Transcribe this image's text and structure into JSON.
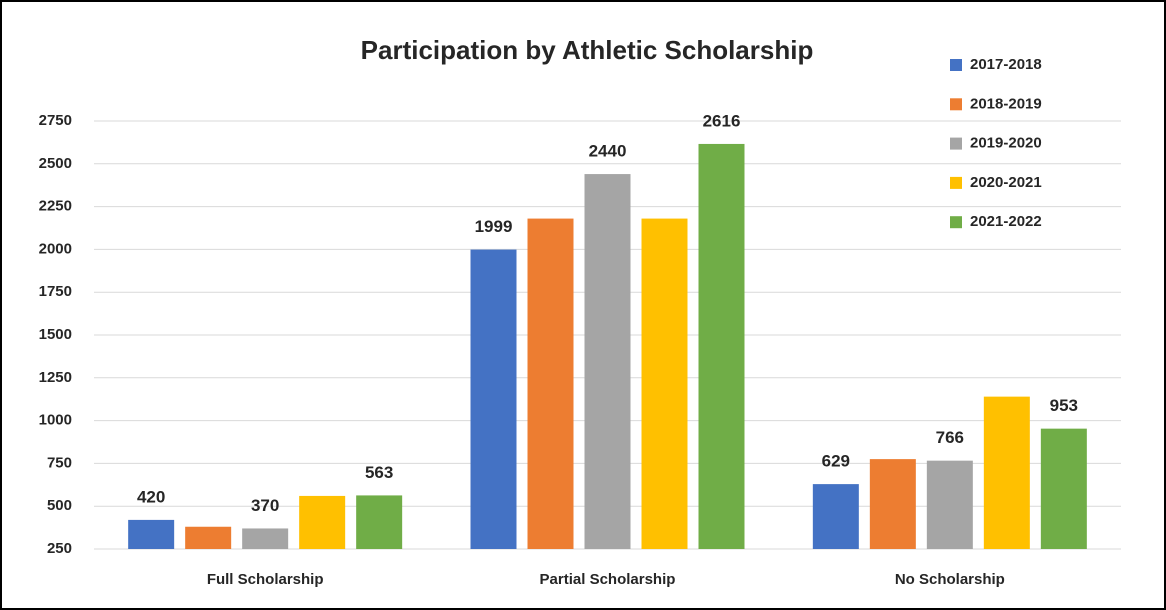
{
  "chart_data": {
    "type": "bar",
    "title": "Participation by Athletic Scholarship",
    "categories": [
      "Full Scholarship",
      "Partial Scholarship",
      "No Scholarship"
    ],
    "series": [
      {
        "name": "2017-2018",
        "color": "#4472c4",
        "values": [
          420,
          1999,
          629
        ],
        "labeled": [
          true,
          true,
          true
        ]
      },
      {
        "name": "2018-2019",
        "color": "#ed7d31",
        "values": [
          380,
          2180,
          775
        ],
        "labeled": [
          false,
          false,
          false
        ]
      },
      {
        "name": "2019-2020",
        "color": "#a5a5a5",
        "values": [
          370,
          2440,
          766
        ],
        "labeled": [
          true,
          true,
          true
        ]
      },
      {
        "name": "2020-2021",
        "color": "#ffc000",
        "values": [
          560,
          2180,
          1140
        ],
        "labeled": [
          false,
          false,
          false
        ]
      },
      {
        "name": "2021-2022",
        "color": "#70ad47",
        "values": [
          563,
          2616,
          953
        ],
        "labeled": [
          true,
          true,
          true
        ]
      }
    ],
    "ylim": [
      250,
      2750
    ],
    "yticks": [
      250,
      500,
      750,
      1000,
      1250,
      1500,
      1750,
      2000,
      2250,
      2500,
      2750
    ],
    "grid": true,
    "legend": "top-right"
  }
}
